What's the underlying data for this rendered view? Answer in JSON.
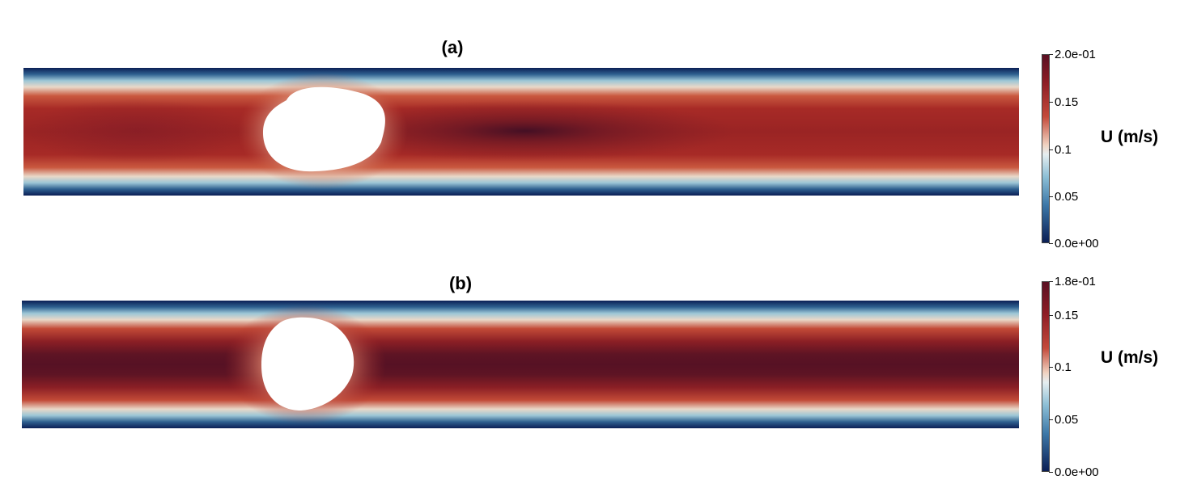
{
  "panels": [
    {
      "label": "(a)",
      "colorbar": {
        "title": "U (m/s)",
        "ticks": [
          "2.0e-01",
          "0.15",
          "0.1",
          "0.05",
          "0.0e+00"
        ],
        "tick_values": [
          0.2,
          0.15,
          0.1,
          0.05,
          0.0
        ],
        "range": [
          0.0,
          0.2
        ]
      }
    },
    {
      "label": "(b)",
      "colorbar": {
        "title": "U (m/s)",
        "ticks": [
          "1.8e-01",
          "0.15",
          "0.1",
          "0.05",
          "0.0e+00"
        ],
        "tick_values": [
          0.18,
          0.15,
          0.1,
          0.05,
          0.0
        ],
        "range": [
          0.0,
          0.18
        ]
      }
    }
  ],
  "colors": {
    "cmap_high": "#5a0f22",
    "cmap_mid_high": "#b02a26",
    "cmap_mid": "#f2e6dc",
    "cmap_mid_low": "#4a8fb8",
    "cmap_low": "#0b1f55",
    "droplet": "#ffffff"
  }
}
